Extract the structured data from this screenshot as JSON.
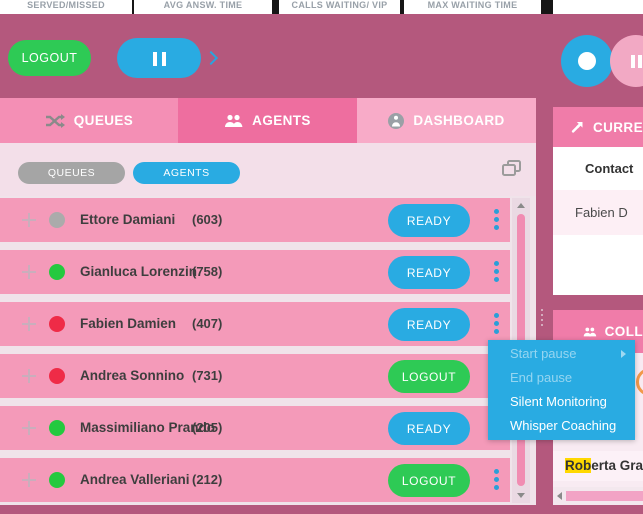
{
  "top_metrics": {
    "items": [
      "SERVED/MISSED",
      "AVG ANSW. TIME",
      "CALLS WAITING/ VIP",
      "MAX WAITING TIME"
    ]
  },
  "toolbar": {
    "logout_label": "LOGOUT"
  },
  "tabs": [
    {
      "label": "QUEUES"
    },
    {
      "label": "AGENTS"
    },
    {
      "label": "DASHBOARD"
    }
  ],
  "filters": {
    "queues_label": "QUEUES",
    "agents_label": "AGENTS"
  },
  "agents": [
    {
      "name": "Ettore Damiani",
      "ext": "(603)",
      "status": "READY",
      "presence": "gray"
    },
    {
      "name": "Gianluca Lorenzin",
      "ext": "(758)",
      "status": "READY",
      "presence": "green"
    },
    {
      "name": "Fabien Damien",
      "ext": "(407)",
      "status": "READY",
      "presence": "red"
    },
    {
      "name": "Andrea Sonnino",
      "ext": "(731)",
      "status": "LOGOUT",
      "presence": "red"
    },
    {
      "name": "Massimiliano Prando",
      "ext": "(205)",
      "status": "READY",
      "presence": "green"
    },
    {
      "name": "Andrea Valleriani",
      "ext": "(212)",
      "status": "LOGOUT",
      "presence": "green"
    }
  ],
  "context_menu": {
    "items": [
      {
        "label": "Start pause",
        "disabled": true,
        "has_submenu": true
      },
      {
        "label": "End pause",
        "disabled": true,
        "has_submenu": false
      },
      {
        "label": "Silent Monitoring",
        "disabled": false,
        "has_submenu": false
      },
      {
        "label": "Whisper Coaching",
        "disabled": false,
        "has_submenu": false
      }
    ]
  },
  "current_calls_panel": {
    "title": "CURRE",
    "column_header": "Contact",
    "row_value": "Fabien D"
  },
  "colleagues_panel": {
    "title": "COLL",
    "name_match": "Rob",
    "name_rest": "erta Grassi"
  },
  "colors": {
    "accent_blue": "#29abe2",
    "accent_green": "#2eca55",
    "background_mauve": "#b4587d",
    "row_pink": "#f49ab9",
    "panel_header_pink": "#f07ca9",
    "status_gray": "#ababab",
    "status_green": "#24c93f",
    "status_red": "#ef2b47",
    "highlight_yellow": "#ffd800"
  }
}
